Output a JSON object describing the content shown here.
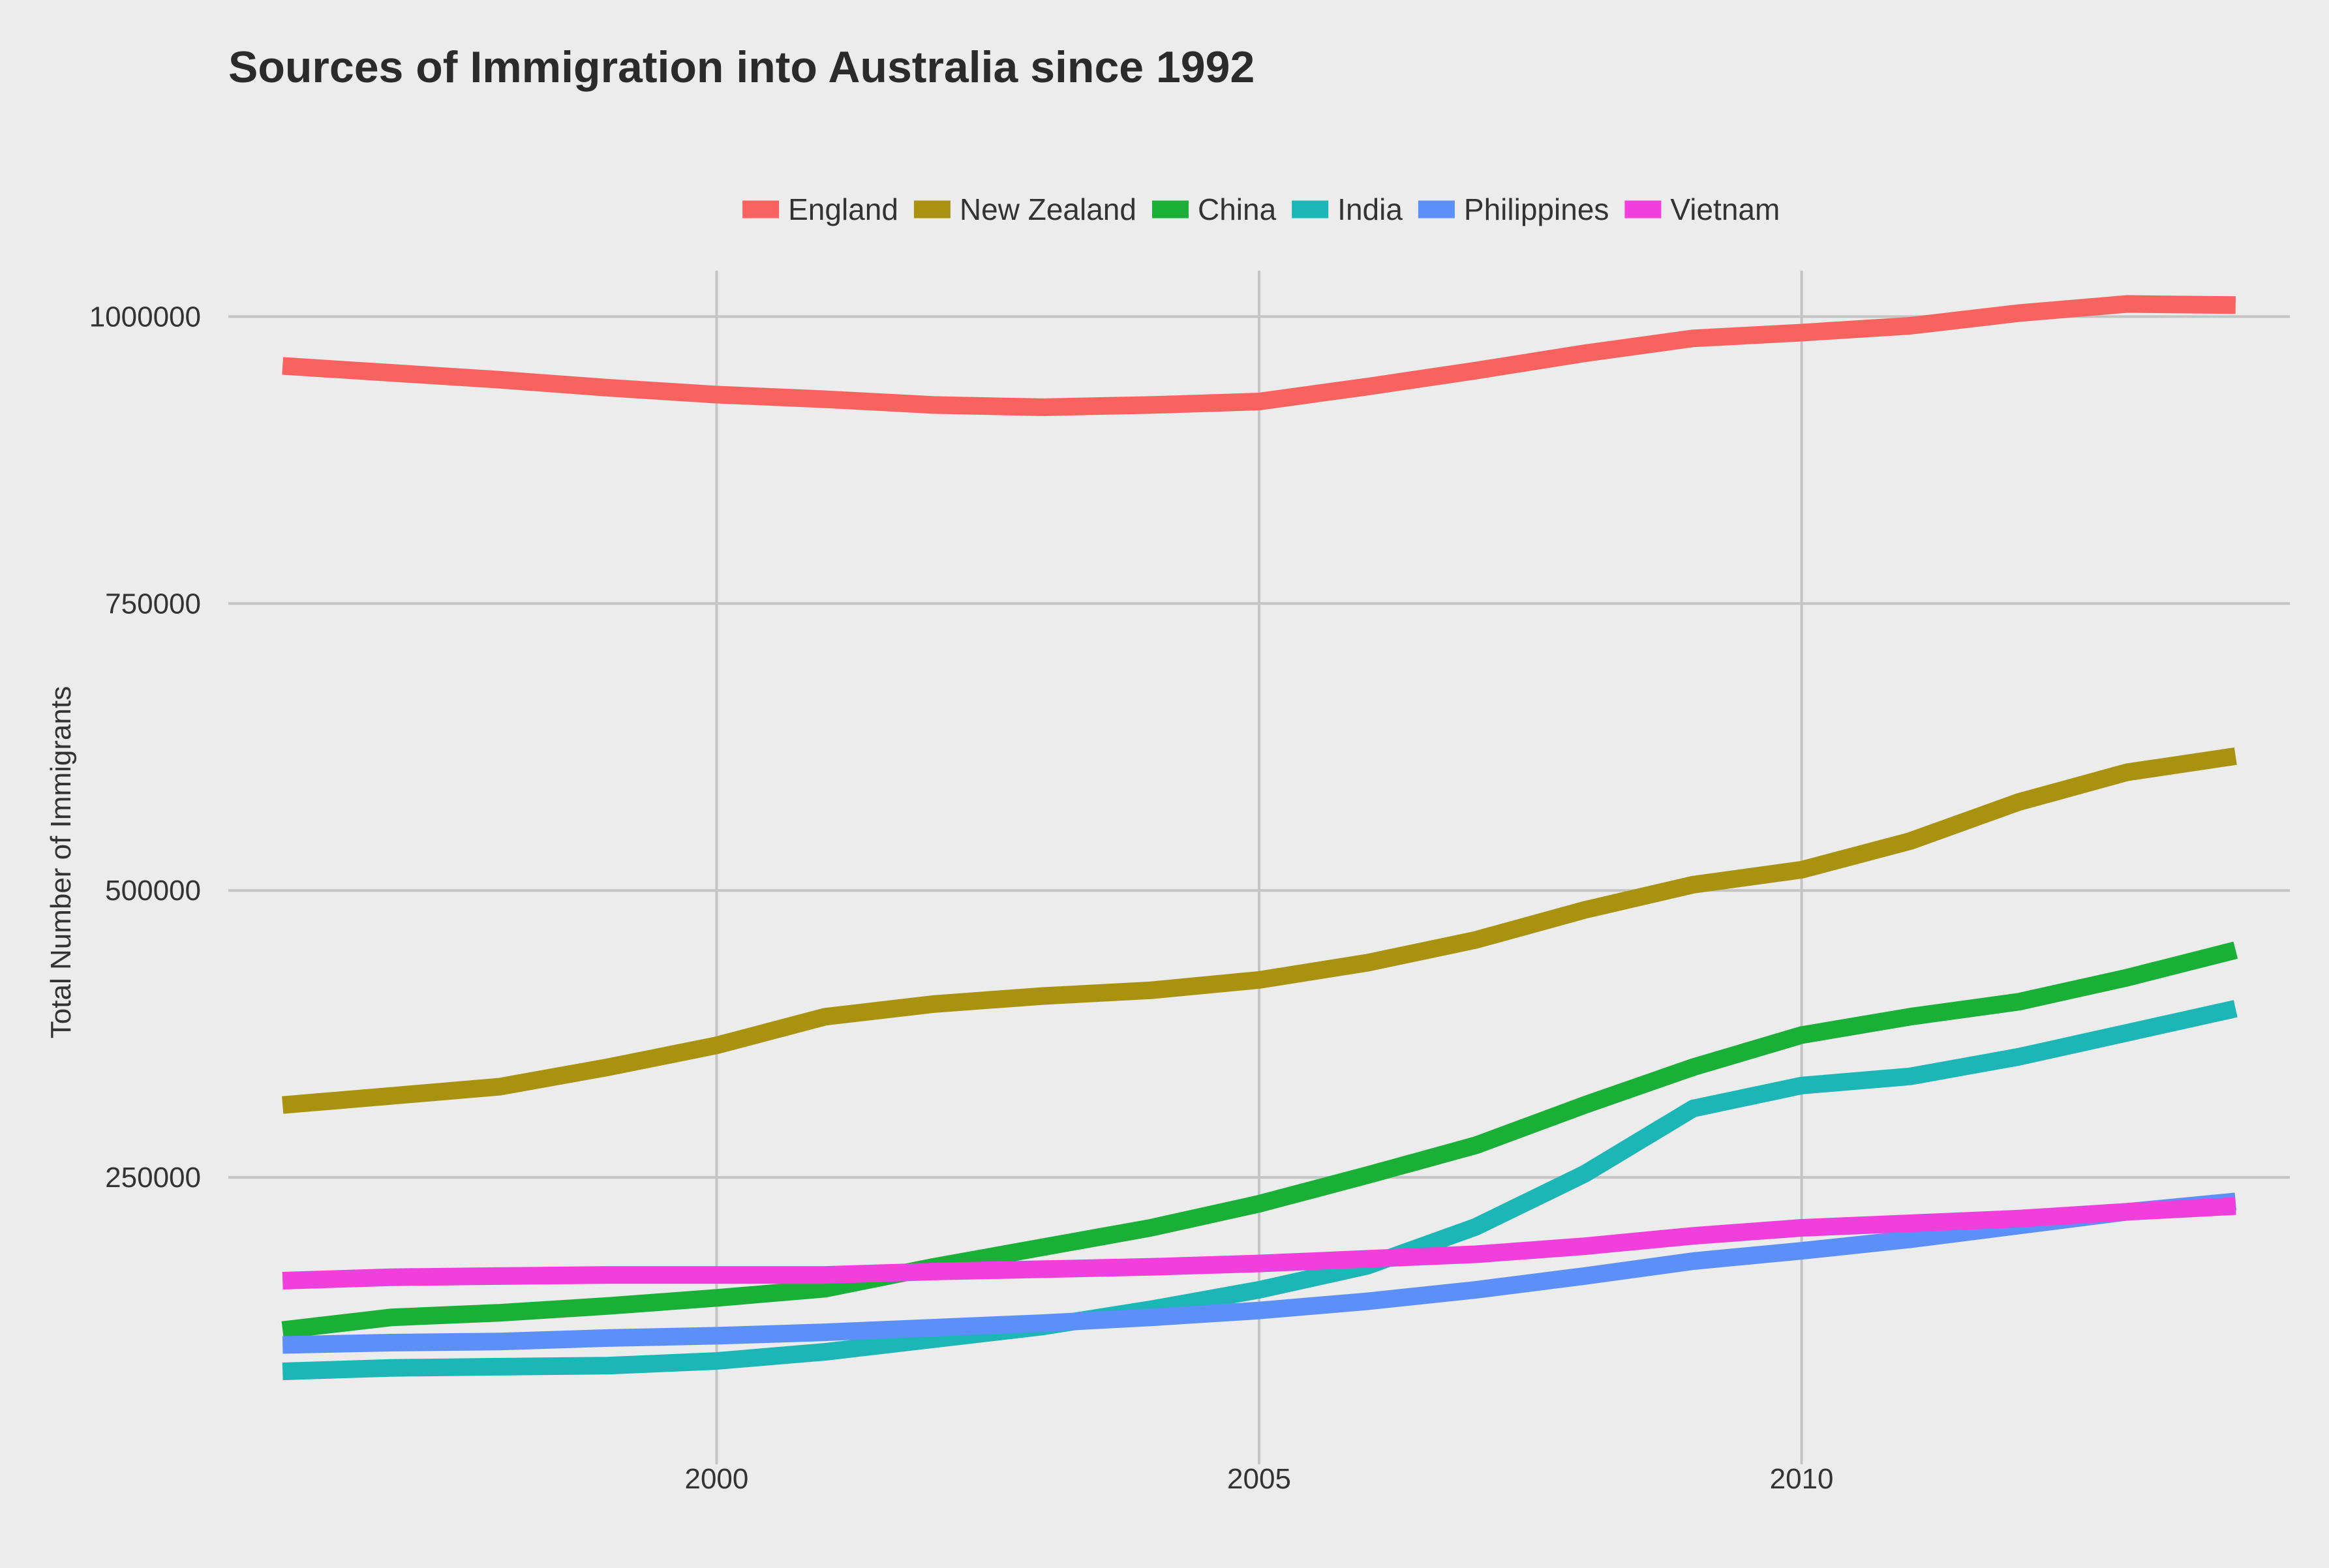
{
  "chart_data": {
    "type": "line",
    "title": "Sources of Immigration into Australia since 1992",
    "xlabel": "",
    "ylabel": "Total Number of Immigrants",
    "xlim": [
      1995.5,
      2014.5
    ],
    "ylim": [
      0,
      1040000
    ],
    "x_ticks": [
      2000,
      2005,
      2010
    ],
    "y_ticks": [
      250000,
      500000,
      750000,
      1000000
    ],
    "grid": true,
    "legend_position": "top",
    "x": [
      1996,
      1997,
      1998,
      1999,
      2000,
      2001,
      2002,
      2003,
      2004,
      2005,
      2006,
      2007,
      2008,
      2009,
      2010,
      2011,
      2012,
      2013,
      2014
    ],
    "series": [
      {
        "name": "England",
        "color": "#f8635f",
        "values": [
          957000,
          951000,
          945000,
          938000,
          932000,
          928000,
          923000,
          921000,
          923000,
          926000,
          939000,
          953000,
          968000,
          981000,
          986000,
          992000,
          1003000,
          1011000,
          1010000
        ]
      },
      {
        "name": "New Zealand",
        "color": "#a89210",
        "values": [
          313000,
          321000,
          329000,
          346000,
          365000,
          390000,
          401000,
          408000,
          413000,
          422000,
          437000,
          457000,
          483000,
          505000,
          518000,
          543000,
          577000,
          603000,
          617000
        ]
      },
      {
        "name": "China",
        "color": "#1aaf37",
        "values": [
          117000,
          128000,
          132000,
          138000,
          145000,
          153000,
          172000,
          189000,
          206000,
          227000,
          252000,
          278000,
          313000,
          346000,
          374000,
          390000,
          403000,
          424000,
          448000
        ]
      },
      {
        "name": "India",
        "color": "#1cb6b7",
        "values": [
          81000,
          84000,
          85000,
          86000,
          90000,
          98000,
          109000,
          120000,
          135000,
          152000,
          173000,
          207000,
          253000,
          310000,
          330000,
          338000,
          355000,
          376000,
          397000
        ]
      },
      {
        "name": "Philippines",
        "color": "#5c8ff8",
        "values": [
          104000,
          106000,
          107000,
          110000,
          112000,
          115000,
          119000,
          123000,
          128000,
          134000,
          142000,
          152000,
          164000,
          177000,
          186000,
          196000,
          208000,
          220000,
          229000
        ]
      },
      {
        "name": "Vietnam",
        "color": "#f03fda",
        "values": [
          160000,
          163000,
          164000,
          165000,
          165000,
          165000,
          168000,
          170000,
          172000,
          175000,
          179000,
          183000,
          190000,
          199000,
          206000,
          210000,
          214000,
          220000,
          225000
        ]
      }
    ]
  }
}
